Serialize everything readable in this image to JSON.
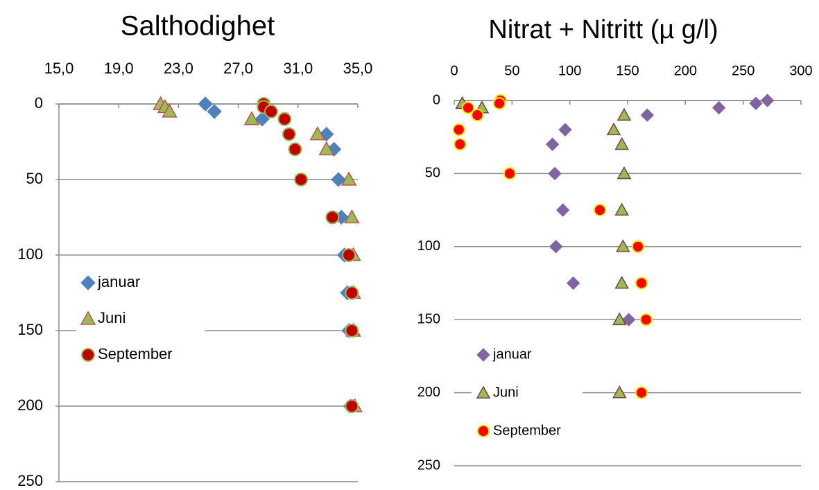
{
  "chart_data": [
    {
      "type": "scatter",
      "title": "Salthodighet",
      "xlim": [
        15,
        35
      ],
      "xticks": [
        {
          "value": 15,
          "label": "15,0"
        },
        {
          "value": 19,
          "label": "19,0"
        },
        {
          "value": 23,
          "label": "23,0"
        },
        {
          "value": 27,
          "label": "27,0"
        },
        {
          "value": 31,
          "label": "31,0"
        },
        {
          "value": 35,
          "label": "35,0"
        }
      ],
      "ylim": [
        0,
        250
      ],
      "yticks": [
        0,
        50,
        100,
        150,
        200,
        250
      ],
      "y_inverted": true,
      "x_axis_position": "top",
      "grid": true,
      "legend": "left",
      "series": [
        {
          "name": "januar",
          "marker": "diamond",
          "color": "#4f81bd",
          "stroke": "#4f81bd",
          "x": [
            24.8,
            25.4,
            28.6,
            32.9,
            33.4,
            33.7,
            33.9,
            34.1,
            34.3,
            34.4,
            34.5
          ],
          "values": [
            0,
            5,
            10,
            20,
            30,
            50,
            75,
            100,
            125,
            150,
            200
          ]
        },
        {
          "name": "Juni",
          "marker": "triangle",
          "color": "#9bbb59",
          "stroke": "#c0504d",
          "x": [
            21.8,
            22.1,
            22.4,
            27.9,
            32.3,
            32.9,
            34.4,
            34.6,
            34.7,
            34.7,
            34.7,
            34.8
          ],
          "values": [
            0,
            2,
            5,
            10,
            20,
            30,
            50,
            75,
            100,
            125,
            150,
            200
          ]
        },
        {
          "name": "September",
          "marker": "circle",
          "color": "#c00000",
          "stroke": "#9bbb59",
          "x": [
            28.7,
            28.7,
            29.2,
            30.1,
            30.4,
            30.8,
            31.2,
            33.3,
            34.4,
            34.6,
            34.6,
            34.6
          ],
          "values": [
            0,
            2,
            5,
            10,
            20,
            30,
            50,
            75,
            100,
            125,
            150,
            200
          ]
        }
      ]
    },
    {
      "type": "scatter",
      "title": "Nitrat + Nitritt (µ g/l)",
      "xlim": [
        0,
        300
      ],
      "xticks": [
        0,
        50,
        100,
        150,
        200,
        250,
        300
      ],
      "ylim": [
        0,
        250
      ],
      "yticks": [
        0,
        50,
        100,
        150,
        200,
        250
      ],
      "y_inverted": true,
      "x_axis_position": "top",
      "grid": true,
      "legend": "bottom-left",
      "series": [
        {
          "name": "januar",
          "marker": "diamond",
          "color": "#8064a2",
          "stroke": "#8064a2",
          "x": [
            271,
            261,
            229,
            167,
            96,
            85,
            87,
            94,
            88,
            103,
            151,
            162
          ],
          "values": [
            0,
            2,
            5,
            10,
            20,
            30,
            50,
            75,
            100,
            125,
            150,
            200
          ]
        },
        {
          "name": "Juni",
          "marker": "triangle",
          "color": "#9bbb59",
          "stroke": "#7f3f3f",
          "x": [
            7,
            24,
            147,
            138,
            145,
            147,
            145,
            146,
            145,
            143,
            143
          ],
          "values": [
            2,
            5,
            10,
            20,
            30,
            50,
            75,
            100,
            125,
            150,
            200
          ]
        },
        {
          "name": "September",
          "marker": "circle",
          "color": "#ff0000",
          "stroke": "#e8e800",
          "x": [
            40,
            39,
            12,
            20,
            4,
            5,
            48,
            126,
            159,
            162,
            166,
            162
          ],
          "values": [
            0,
            2,
            5,
            10,
            20,
            30,
            50,
            75,
            100,
            125,
            150,
            200
          ]
        }
      ]
    }
  ]
}
